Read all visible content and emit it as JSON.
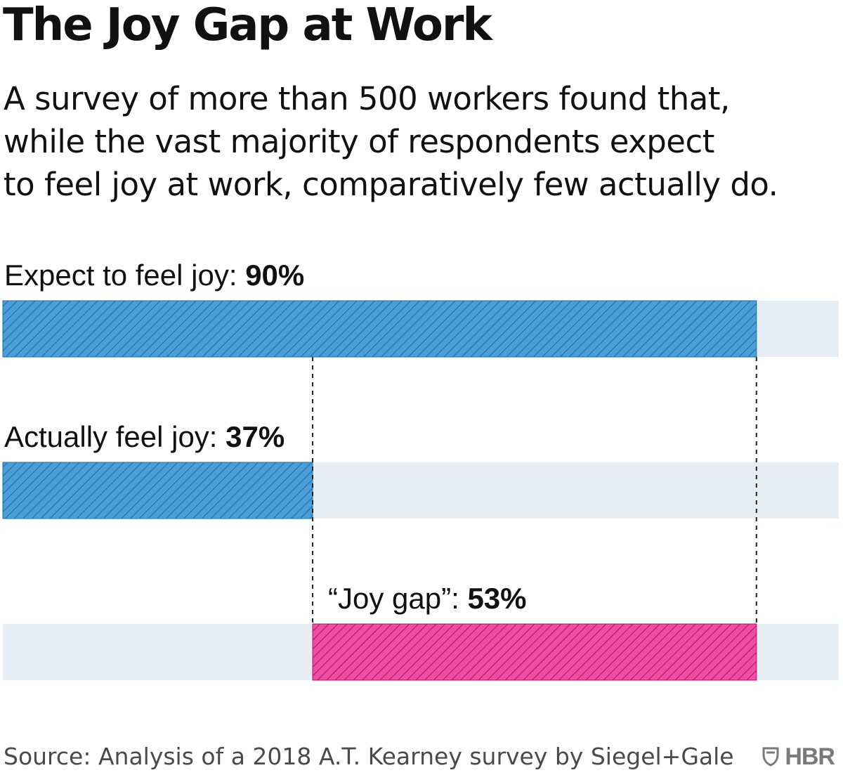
{
  "title": "The Joy Gap at Work",
  "subtitle_lines": [
    "A survey of more than 500 workers found that,",
    "while the vast majority of respondents expect",
    "to feel joy at work, comparatively few actually do."
  ],
  "source": "Source: Analysis of a 2018 A.T. Kearney survey by Siegel+Gale",
  "brand": "HBR",
  "brand_icon": "shield-icon",
  "colors": {
    "blue": "#4a9fd8",
    "blue_hatch": "#1f6fa8",
    "pink": "#ef4da0",
    "pink_hatch": "#b5136b",
    "track": "#e6edf4",
    "guide": "#222222"
  },
  "chart_data": {
    "type": "bar",
    "orientation": "horizontal",
    "xlim": [
      0,
      100
    ],
    "grid": false,
    "legend": "none",
    "series": [
      {
        "label": "Expect to feel joy: ",
        "value_text": "90%",
        "start": 0,
        "value": 90,
        "color": "blue"
      },
      {
        "label": "Actually feel joy: ",
        "value_text": "37%",
        "start": 0,
        "value": 37,
        "color": "blue"
      },
      {
        "label": "“Joy gap”: ",
        "value_text": "53%",
        "start": 37,
        "value": 53,
        "color": "pink"
      }
    ]
  }
}
